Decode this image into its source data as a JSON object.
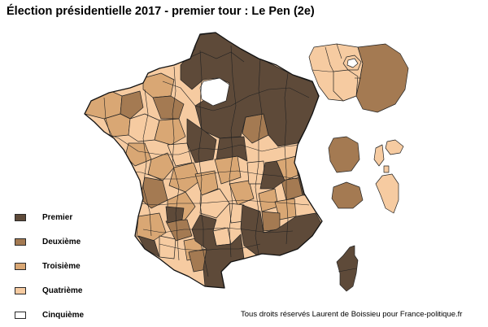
{
  "title": "Élection présidentielle 2017 - premier tour : Le Pen (2e)",
  "legend": [
    {
      "label": "Premier",
      "color": "#5e4a39"
    },
    {
      "label": "Deuxième",
      "color": "#a47a52"
    },
    {
      "label": "Troisième",
      "color": "#d9a774"
    },
    {
      "label": "Quatrième",
      "color": "#f6cba1"
    },
    {
      "label": "Cinquième",
      "color": "#ffffff"
    }
  ],
  "credit": "Tous droits réservés Laurent de Boissieu pour France-politique.fr"
}
